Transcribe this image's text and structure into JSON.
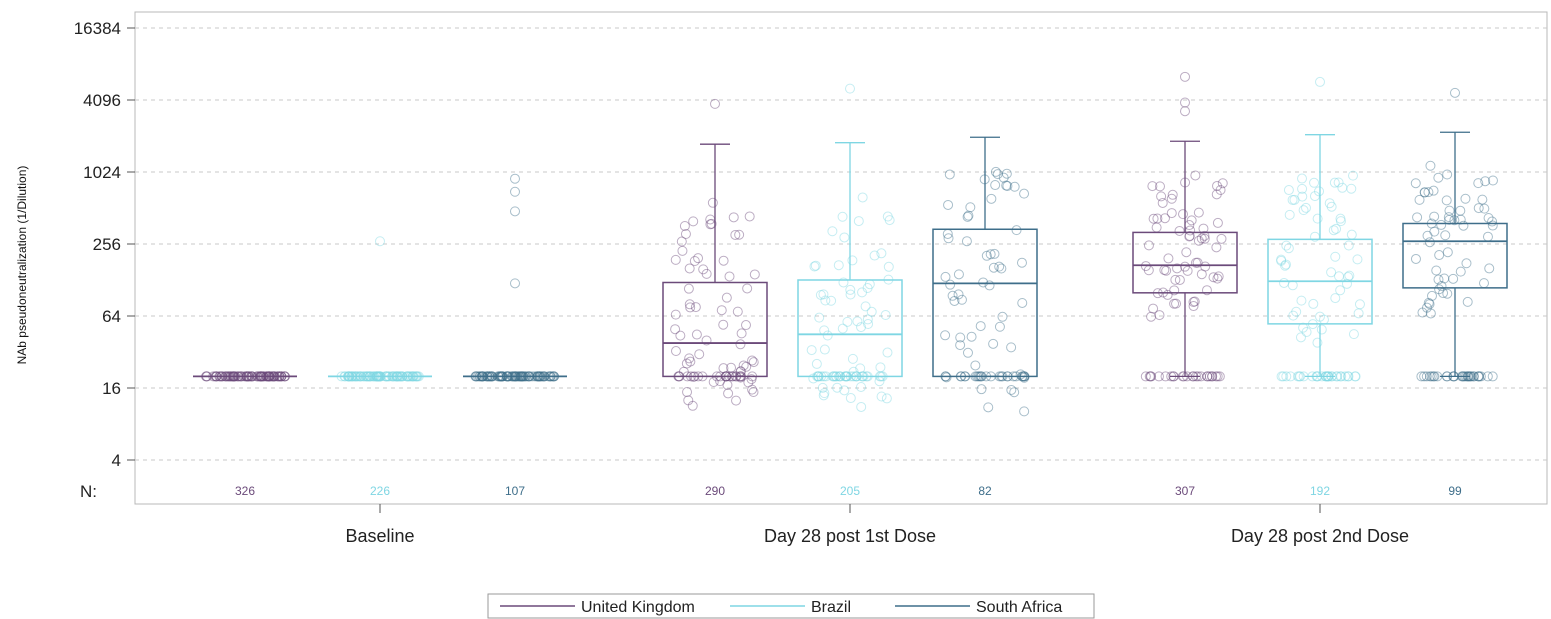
{
  "chart_data": {
    "type": "box",
    "ylabel": "NAb pseudoneutralization (1/Dilution)",
    "yscale": "log2",
    "ylim": [
      2.5,
      16384
    ],
    "yticks": [
      4,
      16,
      64,
      256,
      1024,
      4096,
      16384
    ],
    "grid": true,
    "n_label": "N:",
    "categories": [
      "Baseline",
      "Day 28 post 1st Dose",
      "Day 28 post 2nd Dose"
    ],
    "legend_position": "bottom",
    "series": [
      {
        "name": "United Kingdom",
        "color": "#6b4a7a",
        "n": [
          "326",
          "290",
          "307"
        ],
        "boxes": [
          {
            "min": 20,
            "q1": 20,
            "median": 20,
            "q3": 20,
            "max": 20
          },
          {
            "min": 20,
            "q1": 20,
            "median": 38,
            "q3": 122,
            "max": 1750
          },
          {
            "min": 20,
            "q1": 100,
            "median": 170,
            "q3": 320,
            "max": 1850
          }
        ],
        "outliers": [
          [],
          [
            3800
          ],
          [
            6400,
            3900,
            3300
          ]
        ]
      },
      {
        "name": "Brazil",
        "color": "#7fd6e3",
        "n": [
          "226",
          "205",
          "192"
        ],
        "boxes": [
          {
            "min": 20,
            "q1": 20,
            "median": 20,
            "q3": 20,
            "max": 20
          },
          {
            "min": 20,
            "q1": 20,
            "median": 45,
            "q3": 128,
            "max": 1800
          },
          {
            "min": 20,
            "q1": 55,
            "median": 125,
            "q3": 280,
            "max": 2100
          }
        ],
        "outliers": [
          [
            270
          ],
          [
            5100
          ],
          [
            5800
          ]
        ]
      },
      {
        "name": "South Africa",
        "color": "#3e6e8a",
        "n": [
          "107",
          "82",
          "99"
        ],
        "boxes": [
          {
            "min": 20,
            "q1": 20,
            "median": 20,
            "q3": 20,
            "max": 20
          },
          {
            "min": 20,
            "q1": 20,
            "median": 120,
            "q3": 340,
            "max": 2000
          },
          {
            "min": 20,
            "q1": 110,
            "median": 270,
            "q3": 380,
            "max": 2200
          }
        ],
        "outliers": [
          [
            900,
            700,
            480,
            120
          ],
          [],
          [
            4700
          ]
        ]
      }
    ]
  }
}
